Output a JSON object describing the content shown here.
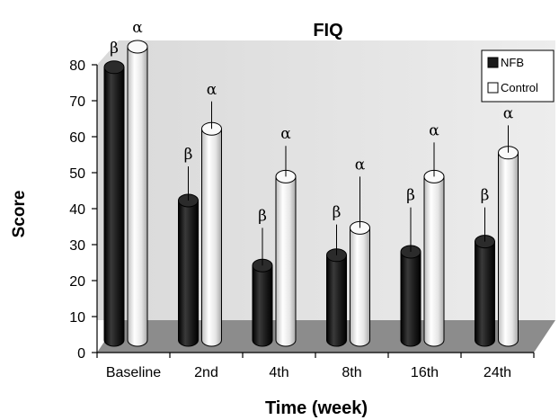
{
  "chart_data": {
    "type": "bar",
    "title": "FIQ",
    "xlabel": "Time (week)",
    "ylabel": "Score",
    "ylim": [
      0,
      80
    ],
    "yticks": [
      "0",
      "10",
      "20",
      "30",
      "40",
      "50",
      "60",
      "70",
      "80"
    ],
    "categories": [
      "Baseline",
      "2nd",
      "4th",
      "8th",
      "16th",
      "24th"
    ],
    "series": [
      {
        "name": "NFB",
        "values": [
          74,
          35,
          16,
          19,
          20,
          23
        ],
        "error_upper": [
          null,
          45,
          27,
          28,
          33,
          33
        ],
        "marker": "β",
        "color": "#1a1a1a"
      },
      {
        "name": "Control",
        "values": [
          80,
          56,
          42,
          27,
          42,
          49
        ],
        "error_upper": [
          null,
          64,
          51,
          42,
          52,
          57
        ],
        "marker": "α",
        "color": "#f2f2f2"
      }
    ],
    "legend_position": "top-right",
    "grid": false,
    "style": "3d-cylinder"
  }
}
